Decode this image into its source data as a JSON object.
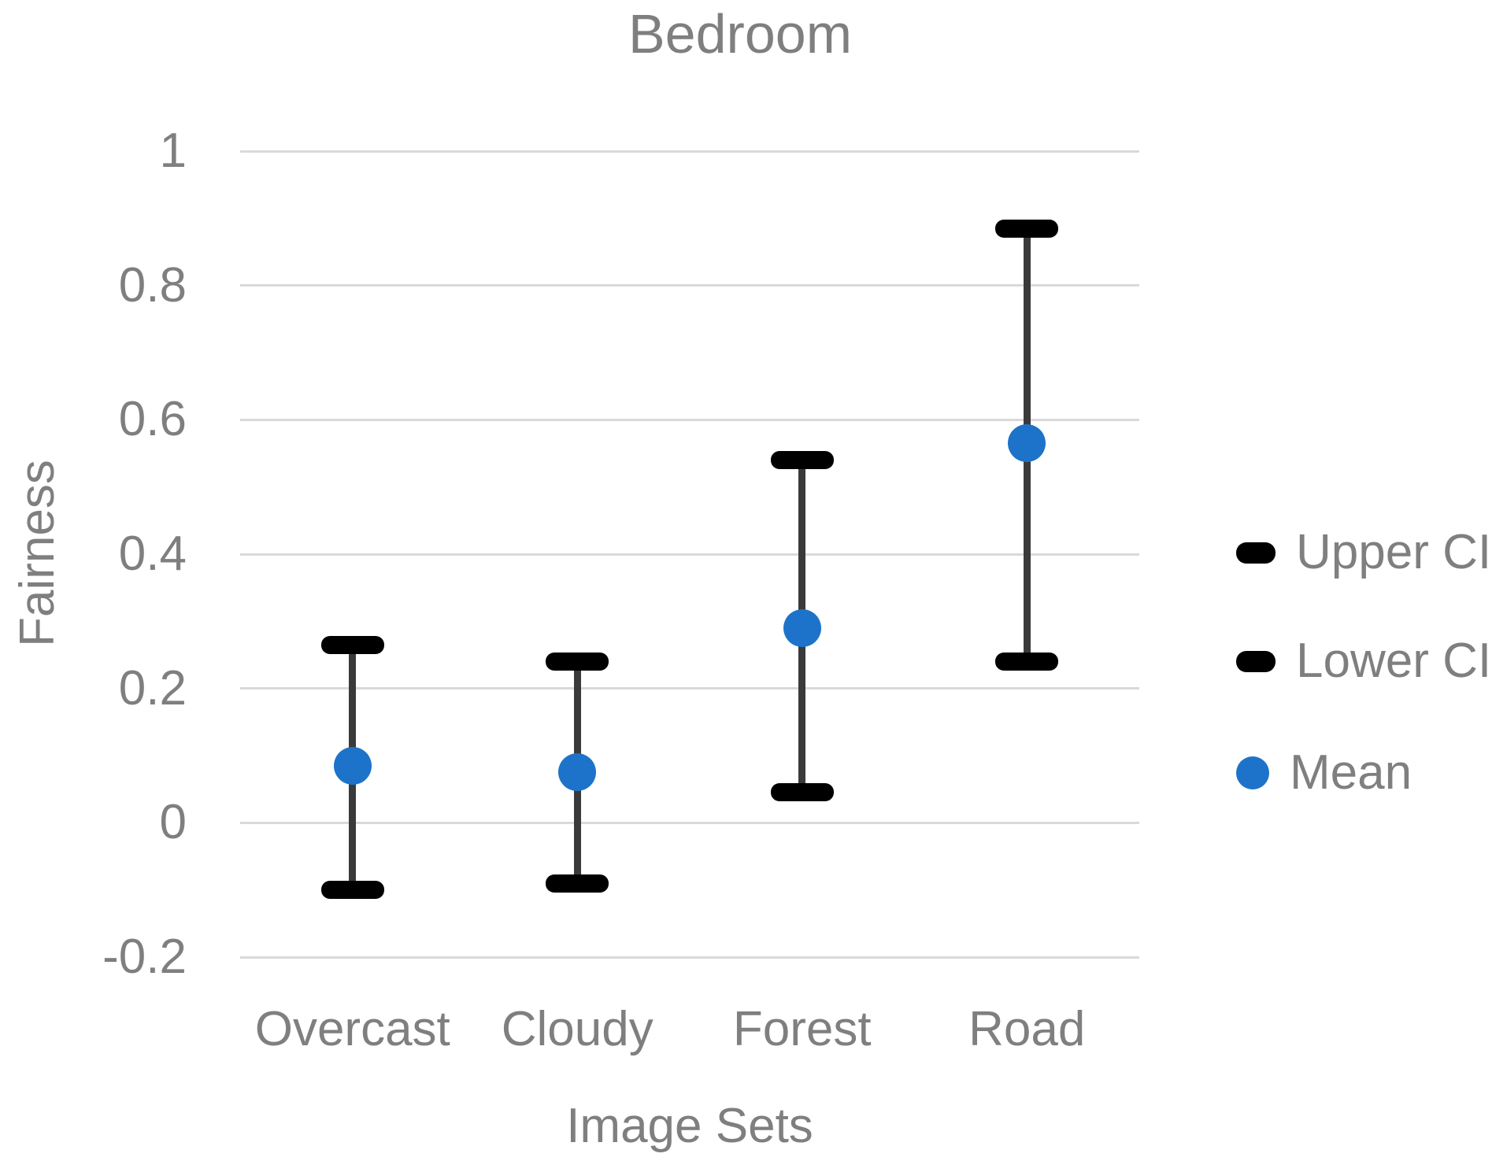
{
  "colors": {
    "mean_point": "#1d73c9",
    "ci_cap": "#000000",
    "error_line": "#3a3a3a",
    "gridline": "#d9d9d9",
    "text": "#7f7f7f"
  },
  "chart_data": {
    "type": "scatter",
    "title": "Bedroom",
    "xlabel": "Image Sets",
    "ylabel": "Fairness",
    "categories": [
      "Overcast",
      "Cloudy",
      "Forest",
      "Road"
    ],
    "series": [
      {
        "name": "Upper CI",
        "values": [
          0.265,
          0.24,
          0.54,
          0.885
        ]
      },
      {
        "name": "Lower CI",
        "values": [
          -0.1,
          -0.09,
          0.045,
          0.24
        ]
      },
      {
        "name": "Mean",
        "values": [
          0.085,
          0.075,
          0.29,
          0.565
        ]
      }
    ],
    "ylim": [
      -0.2,
      1.0
    ],
    "y_ticks": [
      1,
      0.8,
      0.6,
      0.4,
      0.2,
      0,
      -0.2
    ],
    "y_tick_labels": [
      "1",
      "0.8",
      "0.6",
      "0.4",
      "0.2",
      "0",
      "-0.2"
    ],
    "grid": "horizontal",
    "legend": {
      "position": "right",
      "items": [
        {
          "label": "Upper CI",
          "marker": "cap"
        },
        {
          "label": "Lower CI",
          "marker": "cap"
        },
        {
          "label": "Mean",
          "marker": "dot"
        }
      ]
    }
  }
}
